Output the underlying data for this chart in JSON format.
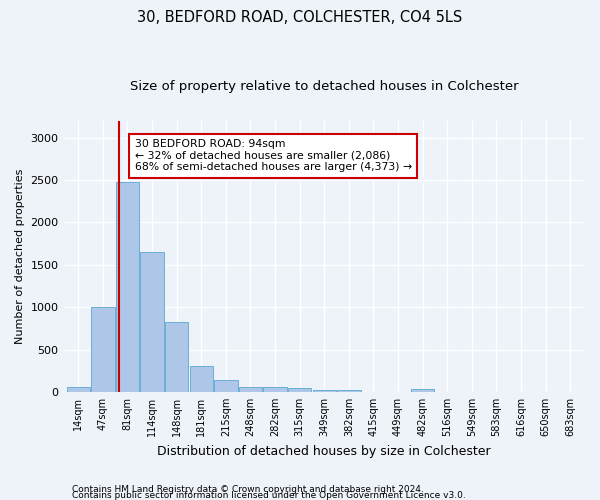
{
  "title1": "30, BEDFORD ROAD, COLCHESTER, CO4 5LS",
  "title2": "Size of property relative to detached houses in Colchester",
  "xlabel": "Distribution of detached houses by size in Colchester",
  "ylabel": "Number of detached properties",
  "footnote1": "Contains HM Land Registry data © Crown copyright and database right 2024.",
  "footnote2": "Contains public sector information licensed under the Open Government Licence v3.0.",
  "bin_labels": [
    "14sqm",
    "47sqm",
    "81sqm",
    "114sqm",
    "148sqm",
    "181sqm",
    "215sqm",
    "248sqm",
    "282sqm",
    "315sqm",
    "349sqm",
    "382sqm",
    "415sqm",
    "449sqm",
    "482sqm",
    "516sqm",
    "549sqm",
    "583sqm",
    "616sqm",
    "650sqm",
    "683sqm"
  ],
  "bar_heights": [
    60,
    1000,
    2470,
    1650,
    830,
    300,
    140,
    55,
    55,
    50,
    20,
    25,
    0,
    0,
    30,
    0,
    0,
    0,
    0,
    0,
    0
  ],
  "bar_color": "#aec6e8",
  "bar_edge_color": "#6aaed6",
  "red_line_bin": 1.67,
  "ylim": [
    0,
    3200
  ],
  "yticks": [
    0,
    500,
    1000,
    1500,
    2000,
    2500,
    3000
  ],
  "annotation_title": "30 BEDFORD ROAD: 94sqm",
  "annotation_line1": "← 32% of detached houses are smaller (2,086)",
  "annotation_line2": "68% of semi-detached houses are larger (4,373) →",
  "annotation_box_color": "#ffffff",
  "annotation_box_edge": "#cc0000",
  "background_color": "#eef2f9",
  "grid_color": "#ffffff",
  "title_fontsize": 10.5,
  "subtitle_fontsize": 9.5,
  "annotation_fontsize": 7.8,
  "ylabel_fontsize": 8,
  "xlabel_fontsize": 9,
  "footnote_fontsize": 6.5
}
